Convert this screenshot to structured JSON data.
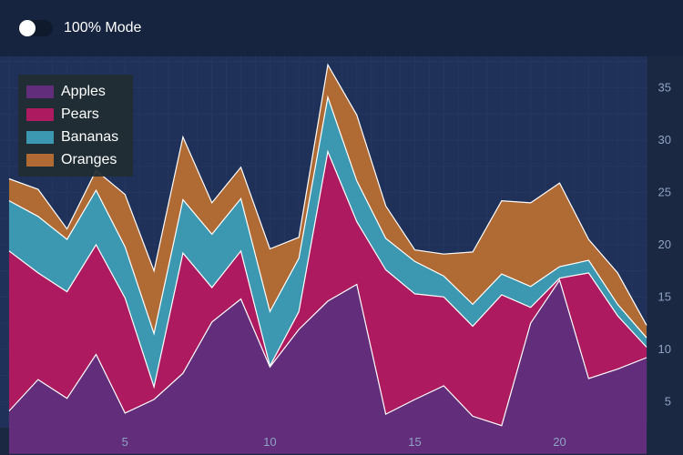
{
  "toggle": {
    "label": "100% Mode",
    "on": false
  },
  "colors": {
    "background": "#1a2842",
    "plot_background": "#1f3159",
    "gridline": "#2a3c66",
    "tick_text": "#8fa3c4"
  },
  "chart_data": {
    "type": "area",
    "stacked": true,
    "x": [
      1,
      2,
      3,
      4,
      5,
      6,
      7,
      8,
      9,
      10,
      11,
      12,
      13,
      14,
      15,
      16,
      17,
      18,
      19,
      20,
      21,
      22,
      23
    ],
    "xlim": [
      1,
      23
    ],
    "ylim": [
      2.5,
      38
    ],
    "x_ticks": [
      5,
      10,
      15,
      20
    ],
    "y_ticks": [
      5,
      10,
      15,
      20,
      25,
      30,
      35
    ],
    "y_axis_position": "right",
    "grid": true,
    "legend_position": "top-left",
    "series": [
      {
        "name": "Apples",
        "color": "#622d7a",
        "values": [
          4.1,
          7.1,
          5.3,
          9.5,
          3.9,
          5.2,
          7.7,
          12.6,
          14.8,
          8.3,
          11.9,
          14.6,
          16.2,
          3.8,
          5.2,
          6.5,
          3.6,
          2.7,
          12.5,
          16.6,
          7.2,
          8.1,
          9.2
        ]
      },
      {
        "name": "Pears",
        "color": "#ad1a5f",
        "values": [
          15.3,
          10.2,
          10.2,
          10.5,
          11.0,
          1.2,
          11.5,
          3.3,
          4.6,
          0.1,
          1.7,
          14.3,
          6.0,
          13.8,
          10.1,
          8.5,
          8.6,
          12.5,
          1.5,
          0.2,
          10.1,
          5.1,
          1.0
        ]
      },
      {
        "name": "Bananas",
        "color": "#3c97b1",
        "values": [
          4.8,
          5.4,
          5.0,
          5.2,
          4.9,
          5.1,
          5.1,
          5.1,
          5.0,
          5.2,
          5.1,
          5.2,
          3.9,
          3.0,
          3.1,
          2.0,
          2.1,
          2.0,
          2.0,
          1.1,
          1.2,
          1.1,
          0.9
        ]
      },
      {
        "name": "Oranges",
        "color": "#b06a33",
        "values": [
          2.1,
          2.6,
          1.0,
          1.9,
          5.0,
          6.0,
          6.0,
          3.0,
          3.0,
          6.0,
          2.0,
          3.1,
          6.3,
          3.1,
          1.1,
          2.1,
          5.0,
          7.0,
          8.0,
          8.0,
          2.0,
          3.0,
          1.2
        ]
      }
    ]
  }
}
